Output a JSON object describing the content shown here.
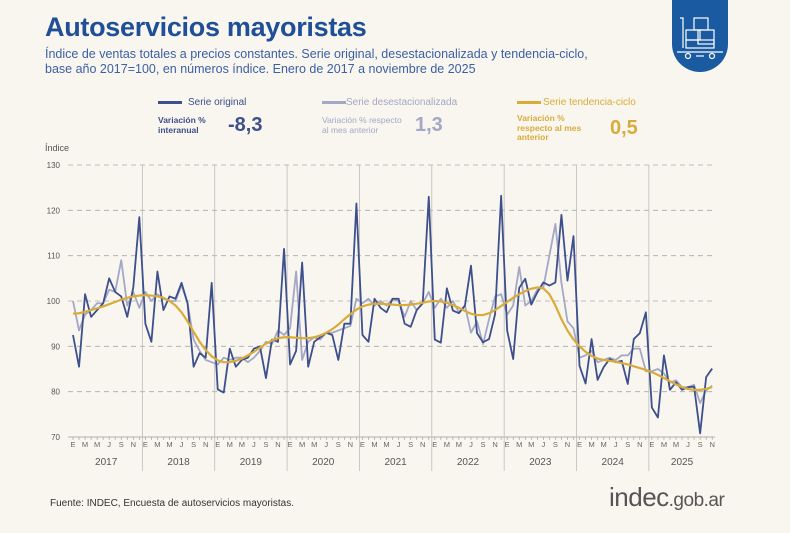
{
  "header": {
    "title": "Autoservicios mayoristas",
    "subtitle": "Índice de ventas totales a precios constantes. Serie original, desestacionalizada y tendencia-ciclo, base año 2017=100, en números índice. Enero de 2017 a noviembre de 2025",
    "badge_icon": "shopping-cart-boxes-icon"
  },
  "legend": [
    {
      "name": "Serie original",
      "var_label": "Variación % interanual",
      "var_value": "-8,3",
      "color": "#3d4f8c"
    },
    {
      "name": "Serie desestacionalizada",
      "var_label": "Variación % respecto al mes anterior",
      "var_value": "1,3",
      "color": "#a4a7c6"
    },
    {
      "name": "Serie tendencia-ciclo",
      "var_label": "Variación % respecto al mes anterior",
      "var_value": "0,5",
      "color": "#d9ac3a"
    }
  ],
  "footer": {
    "source": "Fuente: INDEC, Encuesta de autoservicios mayoristas.",
    "logo_main": "indec",
    "logo_suffix": ".gob.ar"
  },
  "chart_data": {
    "type": "line",
    "ylabel": "Índice",
    "ylim": [
      70,
      130
    ],
    "yticks": [
      70,
      80,
      90,
      100,
      110,
      120,
      130
    ],
    "grid": true,
    "years": [
      "2017",
      "2018",
      "2019",
      "2020",
      "2021",
      "2022",
      "2023",
      "2024",
      "2025"
    ],
    "month_ticks": [
      "E",
      "M",
      "M",
      "J",
      "S",
      "N"
    ],
    "x_start": "2017-01",
    "x_end": "2025-11",
    "series": [
      {
        "name": "Serie original",
        "color": "#3d4f8c",
        "values": [
          92.5,
          85.5,
          101.5,
          96.5,
          98,
          99.5,
          105,
          102,
          101,
          96.5,
          103,
          118.5,
          95,
          91,
          106.5,
          98,
          101,
          100.5,
          104,
          99.5,
          85.5,
          88.5,
          87.5,
          104,
          80.5,
          79.8,
          89.5,
          85.5,
          87,
          87.5,
          89.5,
          90,
          83,
          91.5,
          91,
          111.5,
          86,
          89,
          108.5,
          85.5,
          91,
          92,
          93,
          92.5,
          87,
          95,
          95,
          121.5,
          92.5,
          91,
          100.5,
          98.5,
          97.5,
          100.5,
          100.5,
          95,
          94.3,
          98,
          99.5,
          123,
          91.5,
          90.8,
          102.8,
          97.9,
          97.3,
          99,
          107.8,
          92.9,
          90.9,
          91.6,
          97.1,
          123.2,
          93.5,
          87.2,
          102.9,
          104.9,
          99.2,
          101.9,
          104.1,
          103.4,
          104.1,
          119,
          104.5,
          114.3,
          85.7,
          81.8,
          91.6,
          82.6,
          85.4,
          87.2,
          86.5,
          86.8,
          81.7,
          91.6,
          92.9,
          97.5,
          76.5,
          74.3,
          88,
          80.4,
          82.1,
          80.4,
          81,
          81.1,
          70.8,
          83.2,
          85.1
        ]
      },
      {
        "name": "Serie desestacionalizada",
        "color": "#a4a7c6",
        "values": [
          100,
          93.5,
          97,
          98,
          99.5,
          99.5,
          102.5,
          102,
          109,
          99,
          102,
          98.5,
          102,
          100,
          101.5,
          100.5,
          100,
          100,
          103.5,
          99.5,
          91.5,
          89,
          87,
          86.5,
          86,
          87.5,
          87,
          87.5,
          87.5,
          86.5,
          87.5,
          89,
          91,
          90.5,
          93.5,
          92.5,
          94,
          106.5,
          87,
          91,
          92,
          91.5,
          93,
          93,
          93.5,
          94,
          94.5,
          100.5,
          99.5,
          100.5,
          99,
          100,
          99,
          100.5,
          100,
          96.5,
          100,
          98,
          99.5,
          102,
          98.5,
          100.5,
          98.5,
          100,
          97.5,
          99,
          93,
          95.5,
          90.5,
          96,
          101,
          101.5,
          97,
          99,
          107.5,
          99,
          100,
          102.5,
          103,
          110,
          117,
          104,
          95.5,
          94,
          87.5,
          88,
          89,
          86.5,
          87,
          87.5,
          87,
          88,
          88,
          89.5,
          89.5,
          84.5,
          84.5,
          85,
          84,
          82,
          82.5,
          81,
          81,
          81.5,
          77.5,
          80.3,
          81.3
        ]
      },
      {
        "name": "Serie tendencia-ciclo",
        "color": "#d9ac3a",
        "values": [
          97.2,
          97.3,
          97.6,
          98,
          98.4,
          98.8,
          99.3,
          99.8,
          100.3,
          100.7,
          101,
          101.2,
          101.3,
          101.2,
          101,
          100.7,
          100,
          99,
          97.5,
          95.5,
          93.2,
          91,
          89.2,
          87.8,
          86.9,
          86.5,
          86.5,
          86.8,
          87.3,
          88,
          88.8,
          89.7,
          90.6,
          91.3,
          91.8,
          92,
          92,
          91.9,
          91.8,
          91.8,
          92,
          92.4,
          93,
          93.8,
          94.8,
          96,
          97.1,
          98.1,
          98.8,
          99.2,
          99.4,
          99.4,
          99.3,
          99.2,
          99.1,
          99.1,
          99.2,
          99.4,
          99.6,
          99.9,
          100,
          99.9,
          99.6,
          99.1,
          98.5,
          97.8,
          97.2,
          96.9,
          96.9,
          97.3,
          98,
          98.9,
          99.8,
          100.7,
          101.5,
          102.2,
          102.7,
          103,
          102.8,
          101.5,
          99,
          96,
          93.5,
          91.5,
          90,
          88.8,
          87.9,
          87.3,
          87,
          86.8,
          86.6,
          86.3,
          86,
          85.6,
          85.2,
          84.8,
          84.3,
          83.7,
          83,
          82.3,
          81.6,
          81,
          80.6,
          80.4,
          80.4,
          80.6,
          81
        ]
      }
    ]
  }
}
